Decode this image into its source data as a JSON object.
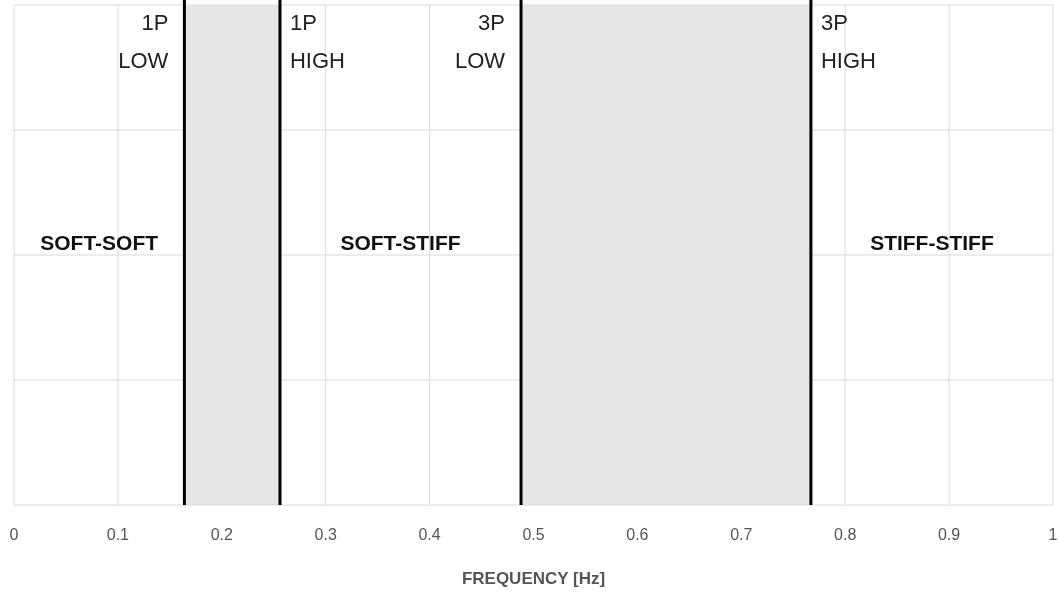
{
  "chart_data": {
    "type": "bar",
    "orientation": "horizontal",
    "xlabel": "FREQUENCY [Hz]",
    "xlim": [
      0,
      1
    ],
    "xticks": [
      0,
      0.1,
      0.2,
      0.3,
      0.4,
      0.5,
      0.6,
      0.7,
      0.8,
      0.9,
      1
    ],
    "grid": true,
    "categories": [
      null
    ],
    "series": [
      {
        "color": "#e6e6e6",
        "values": [
          0.092
        ],
        "base": [
          0.164
        ]
      },
      {
        "color": "#e6e6e6",
        "values": [
          0.279
        ],
        "base": [
          0.488
        ]
      }
    ],
    "ref_lines": [
      {
        "axis": "x",
        "value": 0.164,
        "label": "1P LOW",
        "color": "#000000"
      },
      {
        "axis": "x",
        "value": 0.256,
        "label": "1P HIGH",
        "color": "#000000"
      },
      {
        "axis": "x",
        "value": 0.488,
        "label": "3P LOW",
        "color": "#000000"
      },
      {
        "axis": "x",
        "value": 0.767,
        "label": "3P HIGH",
        "color": "#000000"
      }
    ],
    "annotations": [
      "SOFT-SOFT",
      "SOFT-STIFF",
      "STIFF-STIFF"
    ]
  }
}
